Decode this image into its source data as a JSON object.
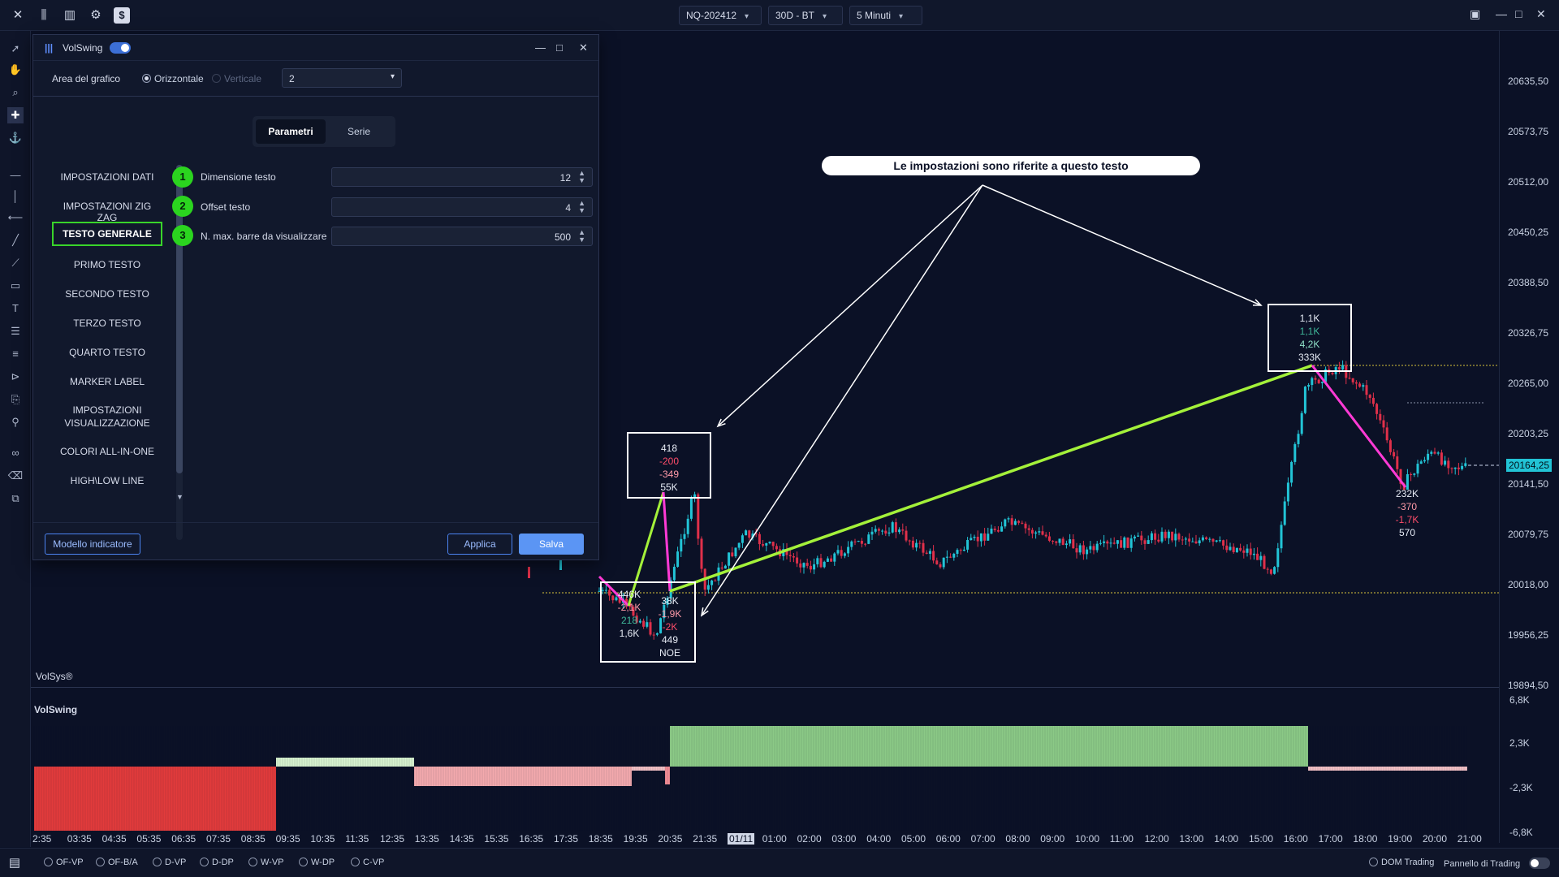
{
  "topbar": {
    "symbol": "NQ-202412",
    "period": "30D - BT",
    "interval": "5 Minuti"
  },
  "chart": {
    "watermark": "VolSys®",
    "callout": "Le impostazioni sono riferite a questo testo",
    "current_price": "20164,25",
    "y_ticks": [
      "20635,50",
      "20573,75",
      "20512,00",
      "20450,25",
      "20388,50",
      "20326,75",
      "20265,00",
      "20203,25",
      "20141,50",
      "20079,75",
      "20018,00",
      "19956,25",
      "19894,50"
    ],
    "annot_low1": [
      "446K",
      "-2,1K",
      "218",
      "1,6K"
    ],
    "annot_low2": [
      "38K",
      "-1,9K",
      "-2K",
      "449",
      "NOE"
    ],
    "annot_mid": [
      "418",
      "-200",
      "-349",
      "55K"
    ],
    "annot_high": [
      "1,1K",
      "1,1K",
      "4,2K",
      "333K"
    ],
    "annot_right": [
      "232K",
      "-370",
      "-1,7K",
      "570"
    ],
    "colors": {
      "up": "#22c4d6",
      "down": "#e0304a",
      "zig_up": "#a4f13a",
      "zig_down": "#ff3ad5"
    }
  },
  "subpanel": {
    "title": "VolSwing",
    "y_ticks": [
      "6,8K",
      "2,3K",
      "-2,3K",
      "-6,8K"
    ]
  },
  "xaxis": {
    "labels": [
      "2:35",
      "03:35",
      "04:35",
      "05:35",
      "06:35",
      "07:35",
      "08:35",
      "09:35",
      "10:35",
      "11:35",
      "12:35",
      "13:35",
      "14:35",
      "15:35",
      "16:35",
      "17:35",
      "18:35",
      "19:35",
      "20:35",
      "21:35",
      "01/11",
      "01:00",
      "02:00",
      "03:00",
      "04:00",
      "05:00",
      "06:00",
      "07:00",
      "08:00",
      "09:00",
      "10:00",
      "11:00",
      "12:00",
      "13:00",
      "14:00",
      "15:00",
      "16:00",
      "17:00",
      "18:00",
      "19:00",
      "20:00",
      "21:00"
    ]
  },
  "bottombar": {
    "items": [
      "OF-VP",
      "OF-B/A",
      "D-VP",
      "D-DP",
      "W-VP",
      "W-DP",
      "C-VP"
    ],
    "dom": "DOM Trading",
    "panel": "Pannello di Trading"
  },
  "dialog": {
    "title": "VolSwing",
    "area_label": "Area del grafico",
    "radio_h": "Orizzontale",
    "radio_v": "Verticale",
    "select_value": "2",
    "tab_params": "Parametri",
    "tab_series": "Serie",
    "nav": [
      "IMPOSTAZIONI DATI",
      "IMPOSTAZIONI ZIG ZAG",
      "TESTO GENERALE",
      "PRIMO TESTO",
      "SECONDO TESTO",
      "TERZO TESTO",
      "QUARTO TESTO",
      "MARKER LABEL",
      "IMPOSTAZIONI VISUALIZZAZIONE",
      "COLORI ALL-IN-ONE",
      "HIGH\\LOW LINE"
    ],
    "badges": [
      "1",
      "2",
      "3"
    ],
    "params": [
      {
        "label": "Dimensione testo",
        "value": "12"
      },
      {
        "label": "Offset testo",
        "value": "4"
      },
      {
        "label": "N. max. barre da visualizzare",
        "value": "500"
      }
    ],
    "btn_model": "Modello indicatore",
    "btn_apply": "Applica",
    "btn_save": "Salva"
  }
}
